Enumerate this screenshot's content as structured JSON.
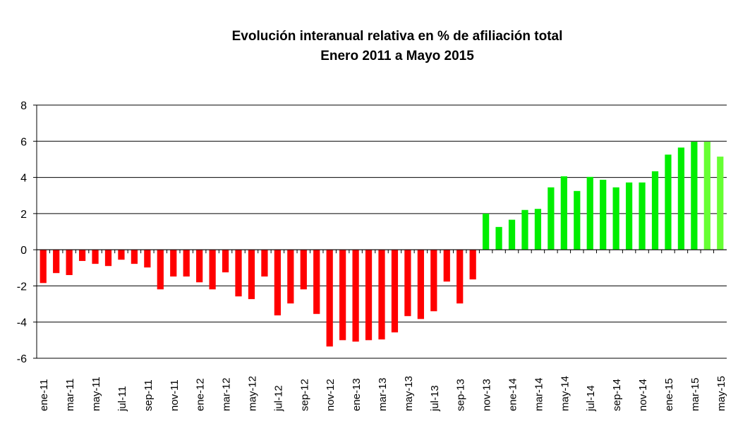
{
  "chart_data": {
    "type": "bar",
    "title": "Evolución interanual relativa en % de afiliación total",
    "subtitle": "Enero 2011 a Mayo 2015",
    "xlabel": "",
    "ylabel": "",
    "ylim": [
      -6,
      8
    ],
    "yticks": [
      8,
      6,
      4,
      2,
      0,
      -2,
      -4,
      -6
    ],
    "grid": true,
    "colors": {
      "negative": "#ff0000",
      "positive": "#00ee00",
      "latest": "#66ff33"
    },
    "categories": [
      "ene-11",
      "feb-11",
      "mar-11",
      "abr-11",
      "may-11",
      "jun-11",
      "jul-11",
      "ago-11",
      "sep-11",
      "oct-11",
      "nov-11",
      "dic-11",
      "ene-12",
      "feb-12",
      "mar-12",
      "abr-12",
      "may-12",
      "jun-12",
      "jul-12",
      "ago-12",
      "sep-12",
      "oct-12",
      "nov-12",
      "dic-12",
      "ene-13",
      "feb-13",
      "mar-13",
      "abr-13",
      "may-13",
      "jun-13",
      "jul-13",
      "ago-13",
      "sep-13",
      "oct-13",
      "nov-13",
      "dic-13",
      "ene-14",
      "feb-14",
      "mar-14",
      "abr-14",
      "may-14",
      "jun-14",
      "jul-14",
      "ago-14",
      "sep-14",
      "oct-14",
      "nov-14",
      "dic-14",
      "ene-15",
      "feb-15",
      "mar-15",
      "abr-15",
      "may-15"
    ],
    "values": [
      -1.84,
      -1.29,
      -1.4,
      -0.62,
      -0.78,
      -0.9,
      -0.55,
      -0.78,
      -0.98,
      -2.19,
      -1.48,
      -1.48,
      -1.8,
      -2.19,
      -1.25,
      -2.58,
      -2.73,
      -1.48,
      -3.63,
      -2.97,
      -2.19,
      -3.55,
      -5.35,
      -5.0,
      -5.08,
      -5.0,
      -4.96,
      -4.57,
      -3.67,
      -3.83,
      -3.4,
      -1.76,
      -2.97,
      -1.64,
      2.0,
      1.26,
      1.66,
      2.2,
      2.26,
      3.45,
      4.06,
      3.25,
      4.03,
      3.87,
      3.45,
      3.72,
      3.72,
      4.34,
      5.26,
      5.65,
      5.97,
      5.97,
      5.15
    ],
    "labeled_every": 2
  }
}
